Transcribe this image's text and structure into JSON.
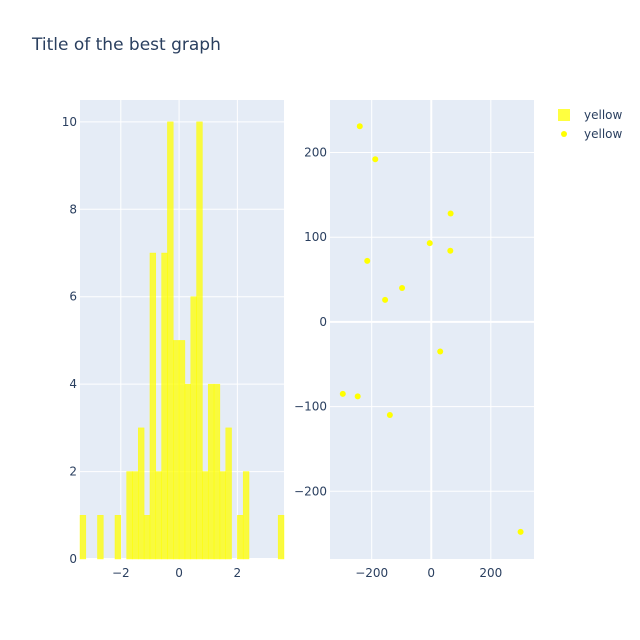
{
  "title": "Title of the best graph",
  "colors": {
    "plot_bg": "#E5ECF6",
    "grid": "#ffffff",
    "marker": "#FFFF00",
    "text": "#2a3f5f"
  },
  "legend": [
    {
      "label": "yellow",
      "symbol": "square"
    },
    {
      "label": "yellow",
      "symbol": "circle"
    }
  ],
  "chart_data": [
    {
      "type": "bar",
      "subtype": "histogram",
      "series_name": "yellow",
      "bin_width": 0.2,
      "xlim": [
        -3.4,
        3.6
      ],
      "ylim": [
        0,
        10.5
      ],
      "xticks": [
        -2,
        0,
        2
      ],
      "xtick_labels": [
        "−2",
        "0",
        "2"
      ],
      "yticks": [
        0,
        2,
        4,
        6,
        8,
        10
      ],
      "bins": [
        {
          "x0": -3.4,
          "count": 1
        },
        {
          "x0": -2.8,
          "count": 1
        },
        {
          "x0": -2.2,
          "count": 1
        },
        {
          "x0": -1.8,
          "count": 2
        },
        {
          "x0": -1.6,
          "count": 2
        },
        {
          "x0": -1.4,
          "count": 3
        },
        {
          "x0": -1.2,
          "count": 1
        },
        {
          "x0": -1.0,
          "count": 7
        },
        {
          "x0": -0.8,
          "count": 2
        },
        {
          "x0": -0.6,
          "count": 7
        },
        {
          "x0": -0.4,
          "count": 10
        },
        {
          "x0": -0.2,
          "count": 5
        },
        {
          "x0": 0.0,
          "count": 5
        },
        {
          "x0": 0.2,
          "count": 4
        },
        {
          "x0": 0.4,
          "count": 6
        },
        {
          "x0": 0.6,
          "count": 10
        },
        {
          "x0": 0.8,
          "count": 2
        },
        {
          "x0": 1.0,
          "count": 4
        },
        {
          "x0": 1.2,
          "count": 4
        },
        {
          "x0": 1.4,
          "count": 2
        },
        {
          "x0": 1.6,
          "count": 3
        },
        {
          "x0": 2.0,
          "count": 1
        },
        {
          "x0": 2.2,
          "count": 2
        },
        {
          "x0": 3.4,
          "count": 1
        }
      ]
    },
    {
      "type": "scatter",
      "series_name": "yellow",
      "xlim": [
        -340,
        345
      ],
      "ylim": [
        -280,
        262
      ],
      "xticks": [
        -200,
        0,
        200
      ],
      "xtick_labels": [
        "−200",
        "0",
        "200"
      ],
      "yticks": [
        -200,
        -100,
        0,
        100,
        200
      ],
      "ytick_labels": [
        "−200",
        "−100",
        "0",
        "100",
        "200"
      ],
      "points": [
        {
          "x": -240,
          "y": 231
        },
        {
          "x": -188,
          "y": 192
        },
        {
          "x": 65,
          "y": 128
        },
        {
          "x": -5,
          "y": 93
        },
        {
          "x": 64,
          "y": 84
        },
        {
          "x": -215,
          "y": 72
        },
        {
          "x": -98,
          "y": 40
        },
        {
          "x": -155,
          "y": 26
        },
        {
          "x": 30,
          "y": -35
        },
        {
          "x": -297,
          "y": -85
        },
        {
          "x": -247,
          "y": -88
        },
        {
          "x": -139,
          "y": -110
        },
        {
          "x": 300,
          "y": -248
        }
      ]
    }
  ]
}
